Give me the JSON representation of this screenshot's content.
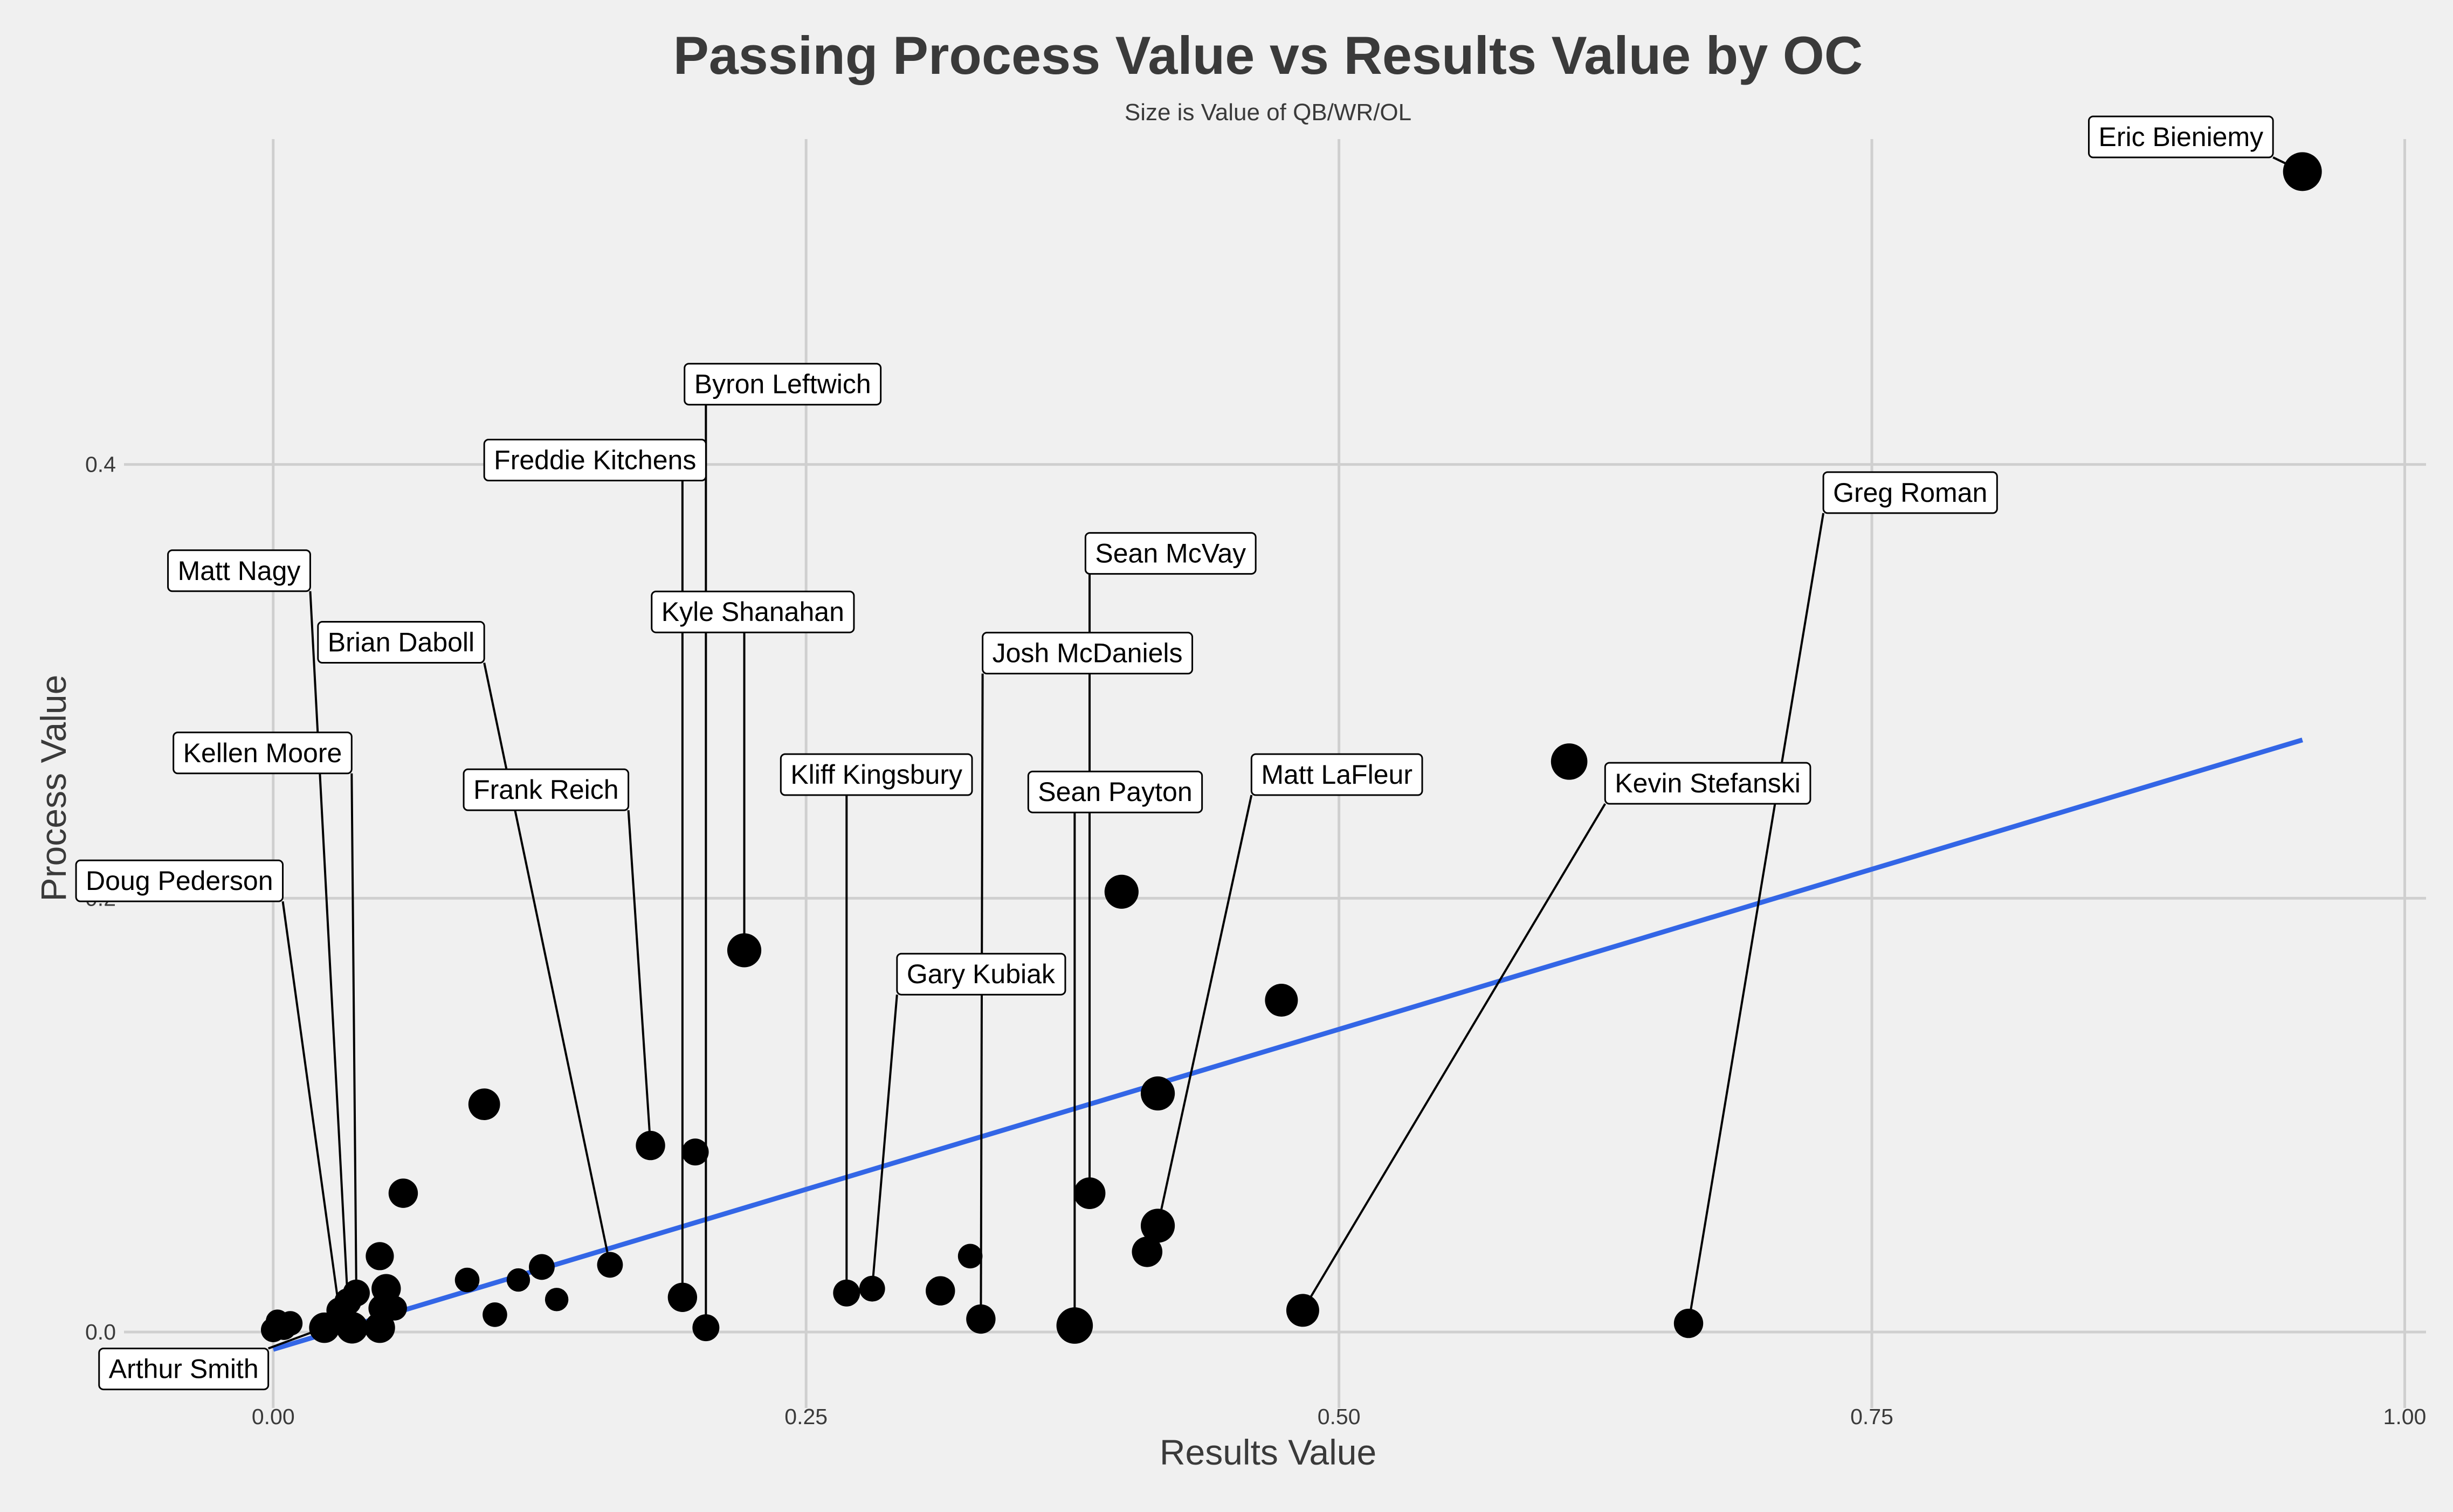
{
  "chart_data": {
    "type": "scatter",
    "title": "Passing Process Value vs Results Value by OC",
    "subtitle": "Size is Value of QB/WR/OL",
    "xlabel": "Results Value",
    "ylabel": "Process Value",
    "xlim": [
      -0.07,
      1.01
    ],
    "ylim": [
      -0.035,
      0.55
    ],
    "x_ticks": [
      0.0,
      0.25,
      0.5,
      0.75,
      1.0
    ],
    "x_tick_labels": [
      "0.00",
      "0.25",
      "0.50",
      "0.75",
      "1.00"
    ],
    "y_ticks": [
      0.0,
      0.2,
      0.4
    ],
    "y_tick_labels": [
      "0.0",
      "0.2",
      "0.4"
    ],
    "grid": true,
    "trend_line": {
      "color": "#3366e6",
      "x": [
        0.0,
        0.952
      ],
      "y": [
        -0.008,
        0.273
      ]
    },
    "points": [
      {
        "x": 0.952,
        "y": 0.535,
        "size": 1.0
      },
      {
        "x": 0.608,
        "y": 0.263,
        "size": 0.9
      },
      {
        "x": 0.664,
        "y": 0.004,
        "size": 0.6
      },
      {
        "x": 0.483,
        "y": 0.01,
        "size": 0.75
      },
      {
        "x": 0.473,
        "y": 0.153,
        "size": 0.75
      },
      {
        "x": 0.415,
        "y": 0.11,
        "size": 0.8
      },
      {
        "x": 0.415,
        "y": 0.049,
        "size": 0.8
      },
      {
        "x": 0.41,
        "y": 0.037,
        "size": 0.65
      },
      {
        "x": 0.398,
        "y": 0.203,
        "size": 0.8
      },
      {
        "x": 0.383,
        "y": 0.064,
        "size": 0.7
      },
      {
        "x": 0.376,
        "y": 0.003,
        "size": 0.9
      },
      {
        "x": 0.332,
        "y": 0.006,
        "size": 0.6
      },
      {
        "x": 0.327,
        "y": 0.035,
        "size": 0.4
      },
      {
        "x": 0.313,
        "y": 0.019,
        "size": 0.6
      },
      {
        "x": 0.281,
        "y": 0.02,
        "size": 0.45
      },
      {
        "x": 0.269,
        "y": 0.018,
        "size": 0.5
      },
      {
        "x": 0.221,
        "y": 0.176,
        "size": 0.8
      },
      {
        "x": 0.203,
        "y": 0.002,
        "size": 0.5
      },
      {
        "x": 0.198,
        "y": 0.083,
        "size": 0.5
      },
      {
        "x": 0.192,
        "y": 0.016,
        "size": 0.6
      },
      {
        "x": 0.177,
        "y": 0.086,
        "size": 0.6
      },
      {
        "x": 0.158,
        "y": 0.031,
        "size": 0.45
      },
      {
        "x": 0.133,
        "y": 0.015,
        "size": 0.35
      },
      {
        "x": 0.126,
        "y": 0.03,
        "size": 0.45
      },
      {
        "x": 0.115,
        "y": 0.024,
        "size": 0.35
      },
      {
        "x": 0.104,
        "y": 0.008,
        "size": 0.4
      },
      {
        "x": 0.099,
        "y": 0.105,
        "size": 0.7
      },
      {
        "x": 0.091,
        "y": 0.024,
        "size": 0.4
      },
      {
        "x": 0.061,
        "y": 0.064,
        "size": 0.6
      },
      {
        "x": 0.057,
        "y": 0.011,
        "size": 0.4
      },
      {
        "x": 0.053,
        "y": 0.02,
        "size": 0.6
      },
      {
        "x": 0.051,
        "y": 0.011,
        "size": 0.5
      },
      {
        "x": 0.05,
        "y": 0.035,
        "size": 0.55
      },
      {
        "x": 0.05,
        "y": 0.002,
        "size": 0.65
      },
      {
        "x": 0.039,
        "y": 0.018,
        "size": 0.5
      },
      {
        "x": 0.037,
        "y": 0.002,
        "size": 0.7
      },
      {
        "x": 0.035,
        "y": 0.014,
        "size": 0.5
      },
      {
        "x": 0.031,
        "y": 0.01,
        "size": 0.45
      },
      {
        "x": 0.024,
        "y": 0.002,
        "size": 0.65
      },
      {
        "x": 0.008,
        "y": 0.004,
        "size": 0.4
      },
      {
        "x": 0.005,
        "y": 0.002,
        "size": 0.4
      },
      {
        "x": 0.002,
        "y": 0.005,
        "size": 0.35
      },
      {
        "x": 0.0,
        "y": 0.001,
        "size": 0.4
      }
    ],
    "annotations": [
      {
        "label": "Eric Bieniemy",
        "x": 0.952,
        "y": 0.535,
        "lx": 0.895,
        "ly": 0.551
      },
      {
        "label": "Greg Roman",
        "x": 0.664,
        "y": 0.004,
        "lx": 0.768,
        "ly": 0.387
      },
      {
        "label": "Kevin Stefanski",
        "x": 0.483,
        "y": 0.01,
        "lx": 0.673,
        "ly": 0.253
      },
      {
        "label": "Matt LaFleur",
        "x": 0.415,
        "y": 0.049,
        "lx": 0.499,
        "ly": 0.257
      },
      {
        "label": "Sean McVay",
        "x": 0.383,
        "y": 0.064,
        "lx": 0.421,
        "ly": 0.359
      },
      {
        "label": "Josh McDaniels",
        "x": 0.332,
        "y": 0.006,
        "lx": 0.382,
        "ly": 0.313
      },
      {
        "label": "Sean Payton",
        "x": 0.376,
        "y": 0.003,
        "lx": 0.395,
        "ly": 0.249
      },
      {
        "label": "Gary Kubiak",
        "x": 0.281,
        "y": 0.02,
        "lx": 0.332,
        "ly": 0.165
      },
      {
        "label": "Kliff Kingsbury",
        "x": 0.269,
        "y": 0.018,
        "lx": 0.283,
        "ly": 0.257
      },
      {
        "label": "Byron Leftwich",
        "x": 0.203,
        "y": 0.002,
        "lx": 0.239,
        "ly": 0.437
      },
      {
        "label": "Kyle Shanahan",
        "x": 0.221,
        "y": 0.176,
        "lx": 0.225,
        "ly": 0.332
      },
      {
        "label": "Freddie Kitchens",
        "x": 0.192,
        "y": 0.016,
        "lx": 0.151,
        "ly": 0.402
      },
      {
        "label": "Frank Reich",
        "x": 0.177,
        "y": 0.086,
        "lx": 0.128,
        "ly": 0.25
      },
      {
        "label": "Brian Daboll",
        "x": 0.158,
        "y": 0.031,
        "lx": 0.06,
        "ly": 0.318
      },
      {
        "label": "Matt Nagy",
        "x": 0.035,
        "y": 0.014,
        "lx": -0.016,
        "ly": 0.351
      },
      {
        "label": "Kellen Moore",
        "x": 0.039,
        "y": 0.018,
        "lx": -0.005,
        "ly": 0.267
      },
      {
        "label": "Doug Pederson",
        "x": 0.031,
        "y": 0.01,
        "lx": -0.044,
        "ly": 0.208
      },
      {
        "label": "Arthur Smith",
        "x": 0.024,
        "y": 0.002,
        "lx": -0.042,
        "ly": -0.017
      }
    ]
  }
}
